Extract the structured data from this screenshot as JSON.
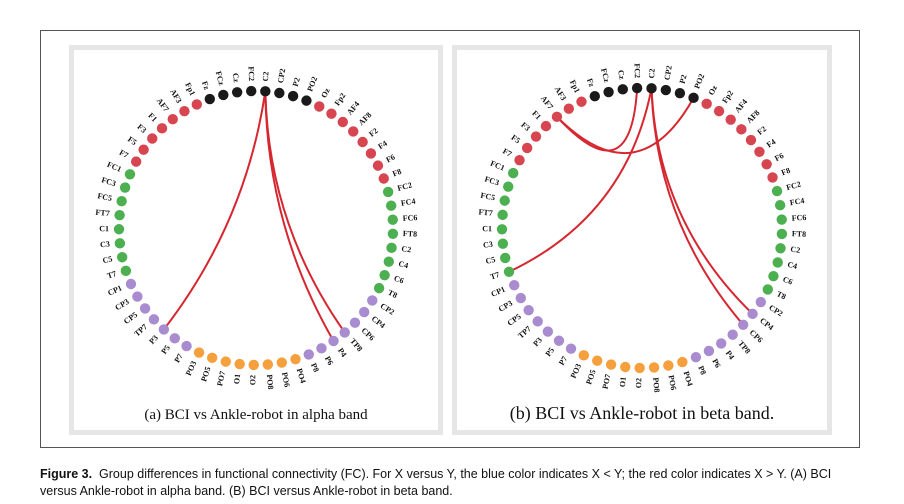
{
  "colors": {
    "black": "#1a1a1a",
    "red": "#d64550",
    "green": "#4caf50",
    "purple": "#a98bd0",
    "orange": "#f5a03c",
    "link": "#d62730"
  },
  "electrodes": [
    {
      "name": "FC2",
      "group": "black"
    },
    {
      "name": "C2",
      "group": "black"
    },
    {
      "name": "CP2",
      "group": "black"
    },
    {
      "name": "P2",
      "group": "black"
    },
    {
      "name": "PO2",
      "group": "black"
    },
    {
      "name": "Oz",
      "group": "red"
    },
    {
      "name": "Fp2",
      "group": "red"
    },
    {
      "name": "AF4",
      "group": "red"
    },
    {
      "name": "AF8",
      "group": "red"
    },
    {
      "name": "F2",
      "group": "red"
    },
    {
      "name": "F4",
      "group": "red"
    },
    {
      "name": "F6",
      "group": "red"
    },
    {
      "name": "F8",
      "group": "red"
    },
    {
      "name": "FC2",
      "group": "green"
    },
    {
      "name": "FC4",
      "group": "green"
    },
    {
      "name": "FC6",
      "group": "green"
    },
    {
      "name": "FT8",
      "group": "green"
    },
    {
      "name": "C2",
      "group": "green"
    },
    {
      "name": "C4",
      "group": "green"
    },
    {
      "name": "C6",
      "group": "green"
    },
    {
      "name": "T8",
      "group": "green"
    },
    {
      "name": "CP2",
      "group": "purple"
    },
    {
      "name": "CP4",
      "group": "purple"
    },
    {
      "name": "CP6",
      "group": "purple"
    },
    {
      "name": "TP8",
      "group": "purple"
    },
    {
      "name": "P4",
      "group": "purple"
    },
    {
      "name": "P6",
      "group": "purple"
    },
    {
      "name": "P8",
      "group": "purple"
    },
    {
      "name": "PO4",
      "group": "orange"
    },
    {
      "name": "PO6",
      "group": "orange"
    },
    {
      "name": "PO8",
      "group": "orange"
    },
    {
      "name": "O2",
      "group": "orange"
    },
    {
      "name": "O1",
      "group": "orange"
    },
    {
      "name": "PO7",
      "group": "orange"
    },
    {
      "name": "PO5",
      "group": "orange"
    },
    {
      "name": "PO3",
      "group": "orange"
    },
    {
      "name": "P7",
      "group": "purple"
    },
    {
      "name": "P5",
      "group": "purple"
    },
    {
      "name": "P3",
      "group": "purple"
    },
    {
      "name": "TP7",
      "group": "purple"
    },
    {
      "name": "CP5",
      "group": "purple"
    },
    {
      "name": "CP3",
      "group": "purple"
    },
    {
      "name": "CP1",
      "group": "purple"
    },
    {
      "name": "T7",
      "group": "green"
    },
    {
      "name": "C5",
      "group": "green"
    },
    {
      "name": "C3",
      "group": "green"
    },
    {
      "name": "C1",
      "group": "green"
    },
    {
      "name": "FT7",
      "group": "green"
    },
    {
      "name": "FC5",
      "group": "green"
    },
    {
      "name": "FC3",
      "group": "green"
    },
    {
      "name": "FC1",
      "group": "green"
    },
    {
      "name": "F7",
      "group": "red"
    },
    {
      "name": "F5",
      "group": "red"
    },
    {
      "name": "F3",
      "group": "red"
    },
    {
      "name": "F1",
      "group": "red"
    },
    {
      "name": "AF7",
      "group": "red"
    },
    {
      "name": "AF3",
      "group": "red"
    },
    {
      "name": "Fp1",
      "group": "red"
    },
    {
      "name": "Fz",
      "group": "black"
    },
    {
      "name": "FCz",
      "group": "black"
    },
    {
      "name": "Cz",
      "group": "black"
    }
  ],
  "panels": [
    {
      "id": "a",
      "subcaption": "(a) BCI vs Ankle-robot in alpha band",
      "connections": [
        [
          1,
          38
        ],
        [
          1,
          24
        ],
        [
          1,
          25
        ]
      ]
    },
    {
      "id": "b",
      "subcaption": "(b) BCI vs Ankle-robot in beta band.",
      "connections": [
        [
          1,
          43
        ],
        [
          1,
          22
        ],
        [
          1,
          23
        ],
        [
          0,
          55
        ],
        [
          4,
          55
        ]
      ]
    }
  ],
  "caption": {
    "label": "Figure 3.",
    "text": "Group differences in functional connectivity (FC). For X versus Y, the blue color indicates X < Y; the red color indicates X > Y. (A) BCI versus Ankle-robot in alpha band. (B) BCI versus Ankle-robot in beta band."
  }
}
